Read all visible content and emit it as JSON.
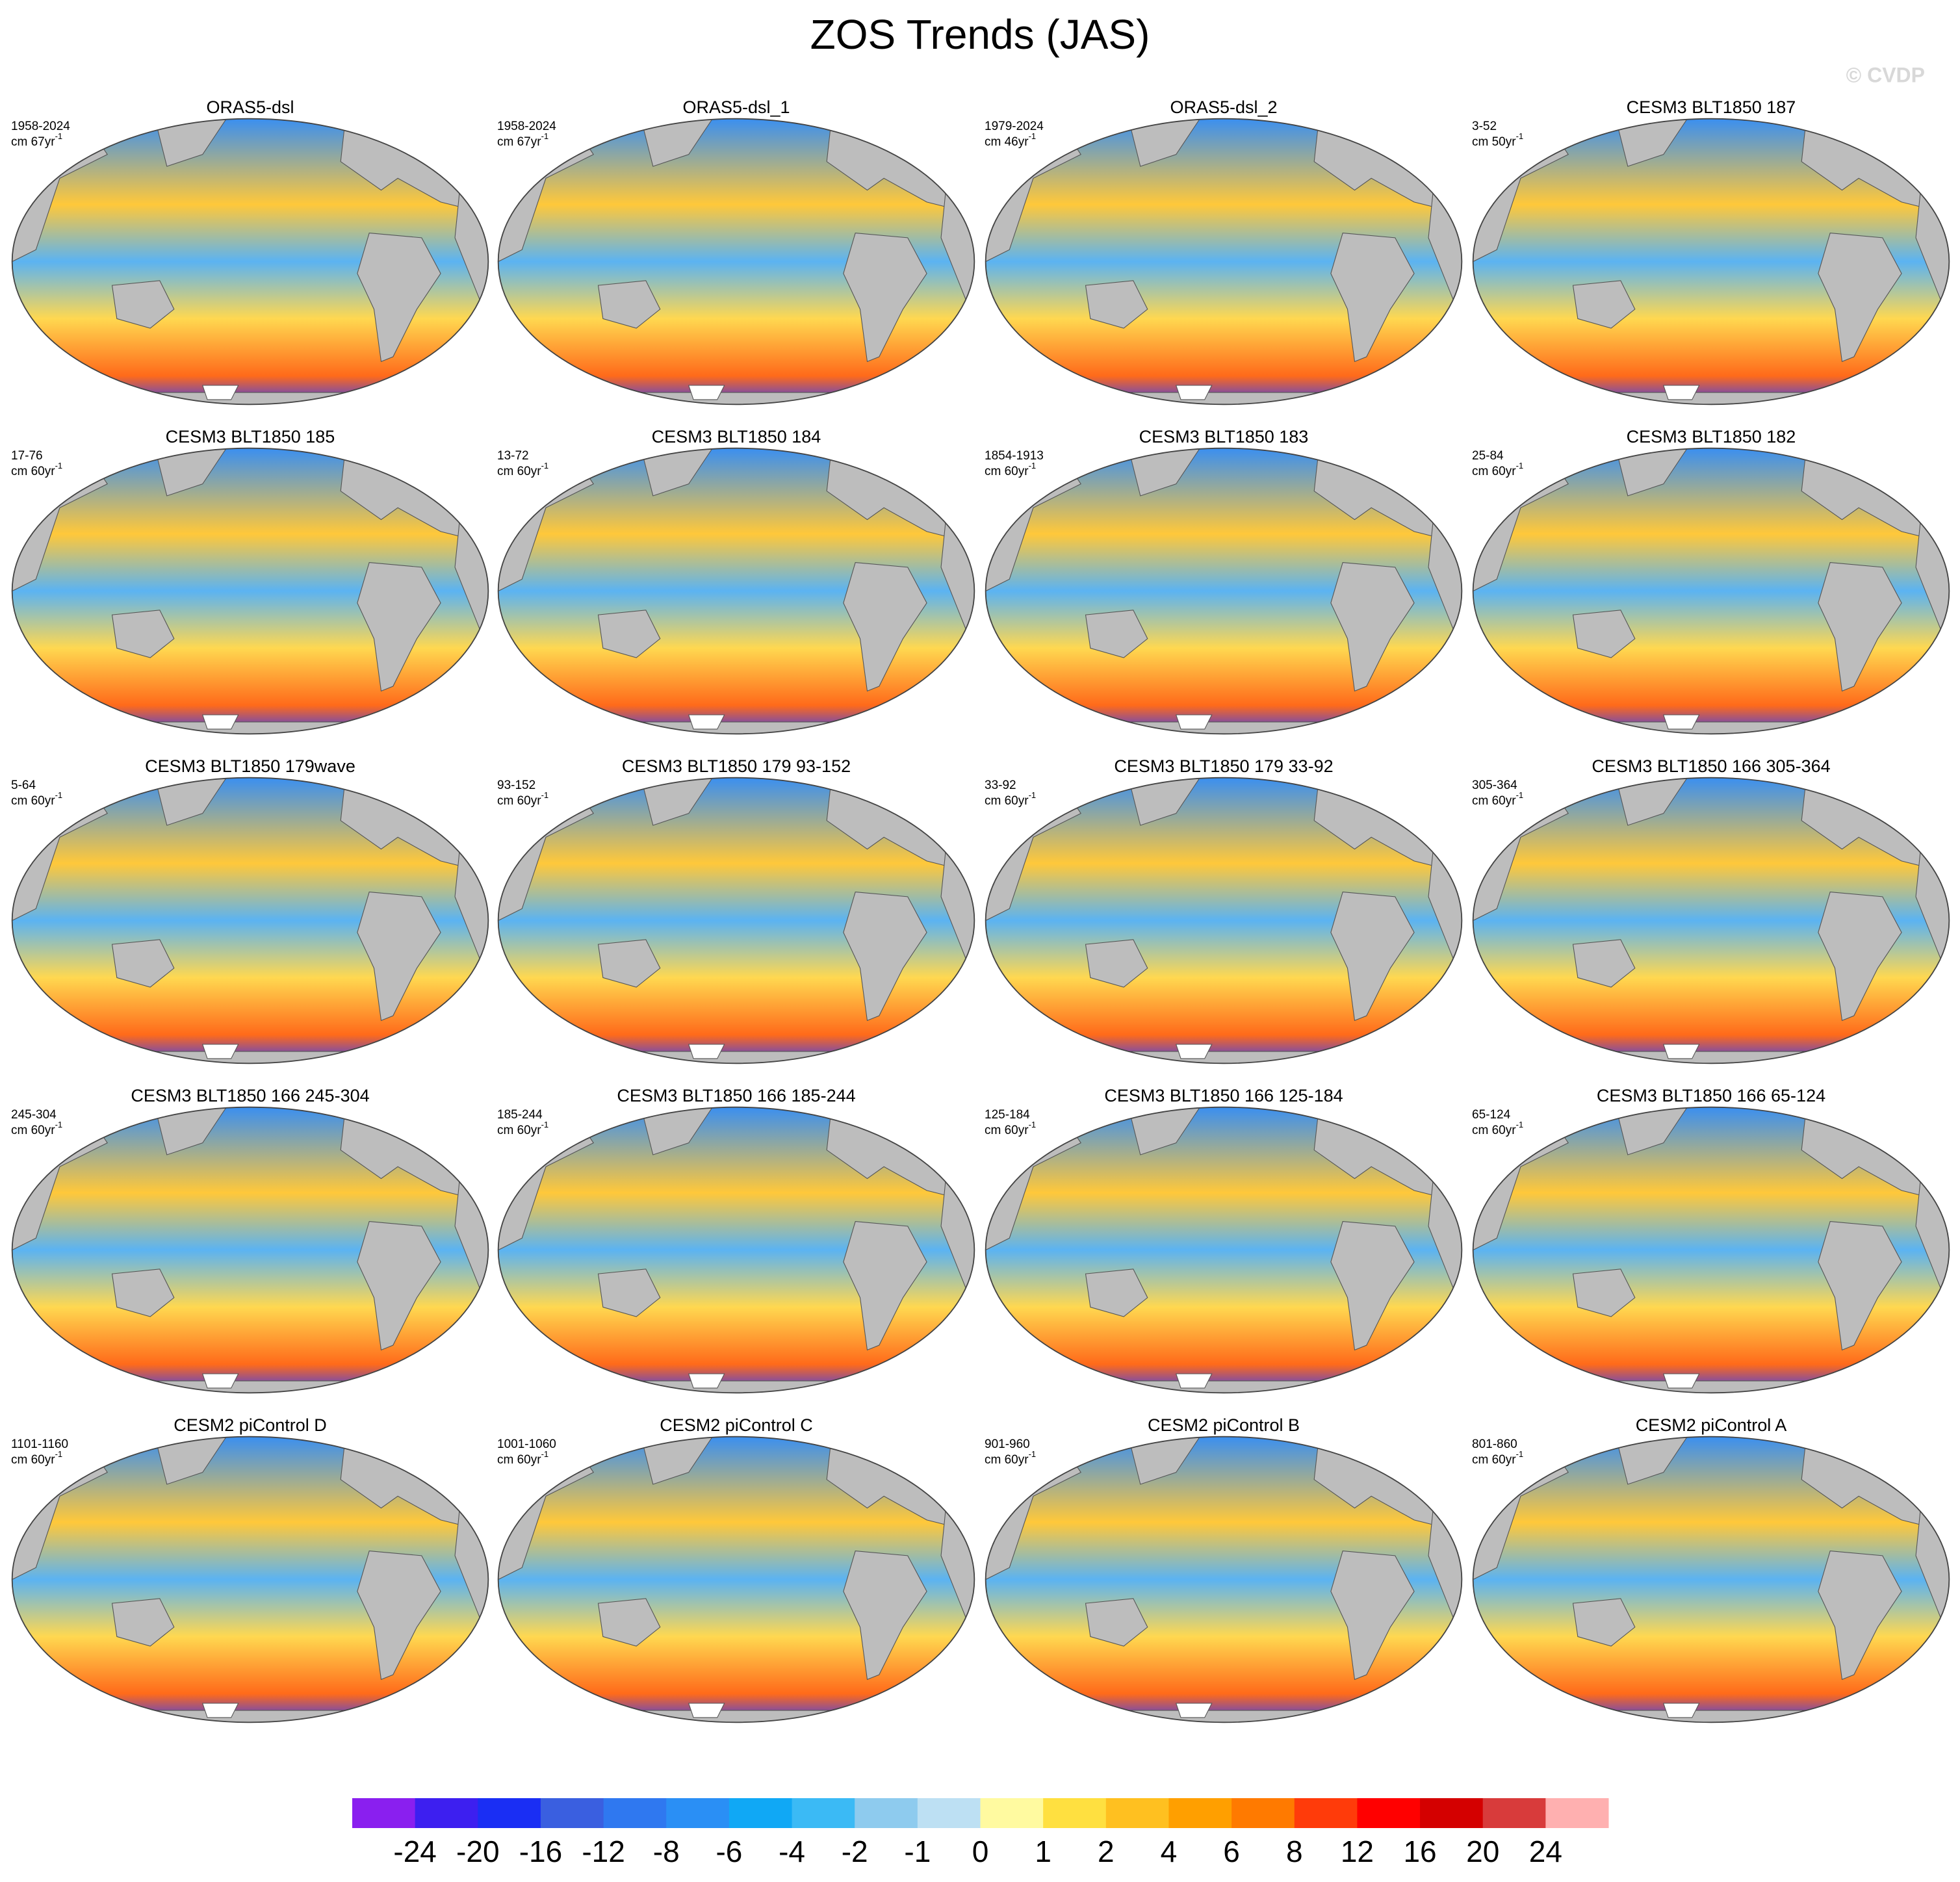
{
  "title": "ZOS Trends (JAS)",
  "watermark": "© CVDP",
  "panels": [
    {
      "title": "ORAS5-dsl",
      "period": "1958-2024",
      "units": "cm 67yr",
      "units_exponent": "-1"
    },
    {
      "title": "ORAS5-dsl_1",
      "period": "1958-2024",
      "units": "cm 67yr",
      "units_exponent": "-1"
    },
    {
      "title": "ORAS5-dsl_2",
      "period": "1979-2024",
      "units": "cm 46yr",
      "units_exponent": "-1"
    },
    {
      "title": "CESM3 BLT1850 187",
      "period": "3-52",
      "units": "cm 50yr",
      "units_exponent": "-1"
    },
    {
      "title": "CESM3 BLT1850 185",
      "period": "17-76",
      "units": "cm 60yr",
      "units_exponent": "-1"
    },
    {
      "title": "CESM3 BLT1850 184",
      "period": "13-72",
      "units": "cm 60yr",
      "units_exponent": "-1"
    },
    {
      "title": "CESM3 BLT1850 183",
      "period": "1854-1913",
      "units": "cm 60yr",
      "units_exponent": "-1"
    },
    {
      "title": "CESM3 BLT1850 182",
      "period": "25-84",
      "units": "cm 60yr",
      "units_exponent": "-1"
    },
    {
      "title": "CESM3 BLT1850 179wave",
      "period": "5-64",
      "units": "cm 60yr",
      "units_exponent": "-1"
    },
    {
      "title": "CESM3 BLT1850 179 93-152",
      "period": "93-152",
      "units": "cm 60yr",
      "units_exponent": "-1"
    },
    {
      "title": "CESM3 BLT1850 179 33-92",
      "period": "33-92",
      "units": "cm 60yr",
      "units_exponent": "-1"
    },
    {
      "title": "CESM3 BLT1850 166 305-364",
      "period": "305-364",
      "units": "cm 60yr",
      "units_exponent": "-1"
    },
    {
      "title": "CESM3 BLT1850 166 245-304",
      "period": "245-304",
      "units": "cm 60yr",
      "units_exponent": "-1"
    },
    {
      "title": "CESM3 BLT1850 166 185-244",
      "period": "185-244",
      "units": "cm 60yr",
      "units_exponent": "-1"
    },
    {
      "title": "CESM3 BLT1850 166 125-184",
      "period": "125-184",
      "units": "cm 60yr",
      "units_exponent": "-1"
    },
    {
      "title": "CESM3 BLT1850 166 65-124",
      "period": "65-124",
      "units": "cm 60yr",
      "units_exponent": "-1"
    },
    {
      "title": "CESM2 piControl D",
      "period": "1101-1160",
      "units": "cm 60yr",
      "units_exponent": "-1"
    },
    {
      "title": "CESM2 piControl C",
      "period": "1001-1060",
      "units": "cm 60yr",
      "units_exponent": "-1"
    },
    {
      "title": "CESM2 piControl B",
      "period": "901-960",
      "units": "cm 60yr",
      "units_exponent": "-1"
    },
    {
      "title": "CESM2 piControl A",
      "period": "801-860",
      "units": "cm 60yr",
      "units_exponent": "-1"
    }
  ],
  "colorbar": {
    "levels": [
      -24,
      -20,
      -16,
      -12,
      -8,
      -6,
      -4,
      -2,
      -1,
      0,
      1,
      2,
      4,
      6,
      8,
      12,
      16,
      20,
      24
    ],
    "colors": [
      "#8a1fef",
      "#3d1ff0",
      "#1a2ef4",
      "#3a5fe0",
      "#2f78f0",
      "#2a8ff5",
      "#10a8f5",
      "#3bbaf5",
      "#8ecbee",
      "#bde0f3",
      "#fffaa0",
      "#ffe040",
      "#ffc020",
      "#ff9f00",
      "#ff7a00",
      "#ff3b0a",
      "#ff0000",
      "#d40000",
      "#d83b3b",
      "#ffb0b0"
    ]
  }
}
